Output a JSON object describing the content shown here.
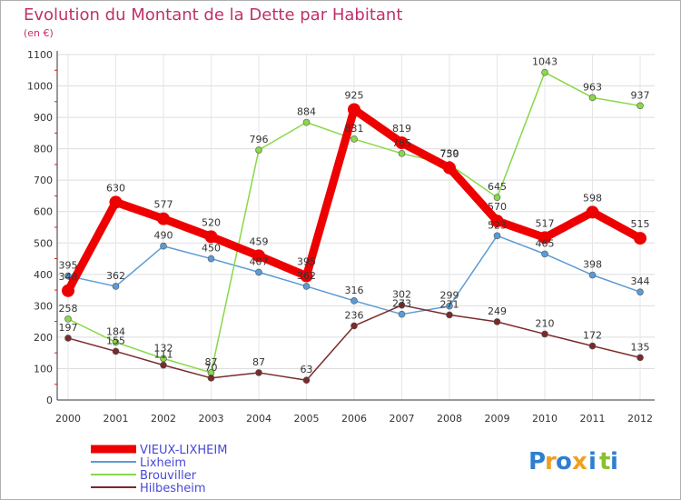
{
  "chart_data": {
    "type": "line",
    "title": "Evolution du Montant de la Dette par Habitant",
    "subtitle": "(en €)",
    "categories": [
      "2000",
      "2001",
      "2002",
      "2003",
      "2004",
      "2005",
      "2006",
      "2007",
      "2008",
      "2009",
      "2010",
      "2011",
      "2012"
    ],
    "ylim": [
      0,
      1100
    ],
    "yticks": [
      0,
      100,
      200,
      300,
      400,
      500,
      600,
      700,
      800,
      900,
      1000,
      1100
    ],
    "grid": true,
    "legend_placement": "bottom-left",
    "series": [
      {
        "name": "VIEUX-LIXHEIM",
        "color": "#ee0000",
        "values": [
          348,
          630,
          577,
          520,
          459,
          395,
          925,
          819,
          739,
          570,
          517,
          598,
          515
        ]
      },
      {
        "name": "Lixheim",
        "color": "#5b9bd5",
        "values": [
          395,
          362,
          490,
          450,
          407,
          362,
          316,
          273,
          299,
          523,
          465,
          398,
          344
        ]
      },
      {
        "name": "Brouviller",
        "color": "#88d848",
        "values": [
          258,
          184,
          132,
          87,
          796,
          884,
          831,
          785,
          750,
          645,
          1043,
          963,
          937
        ]
      },
      {
        "name": "Hilbesheim",
        "color": "#7a2a2a",
        "values": [
          197,
          155,
          111,
          70,
          87,
          63,
          236,
          302,
          271,
          249,
          210,
          172,
          135
        ]
      }
    ]
  },
  "logo": {
    "text": "Proxiti",
    "letters": [
      "P",
      "r",
      "o",
      "x",
      "i",
      "t",
      "i"
    ],
    "colors": [
      "#2e7fd0",
      "#f0a020",
      "#2e7fd0",
      "#f0a020",
      "#2e7fd0",
      "#88c030",
      "#2e7fd0"
    ]
  }
}
